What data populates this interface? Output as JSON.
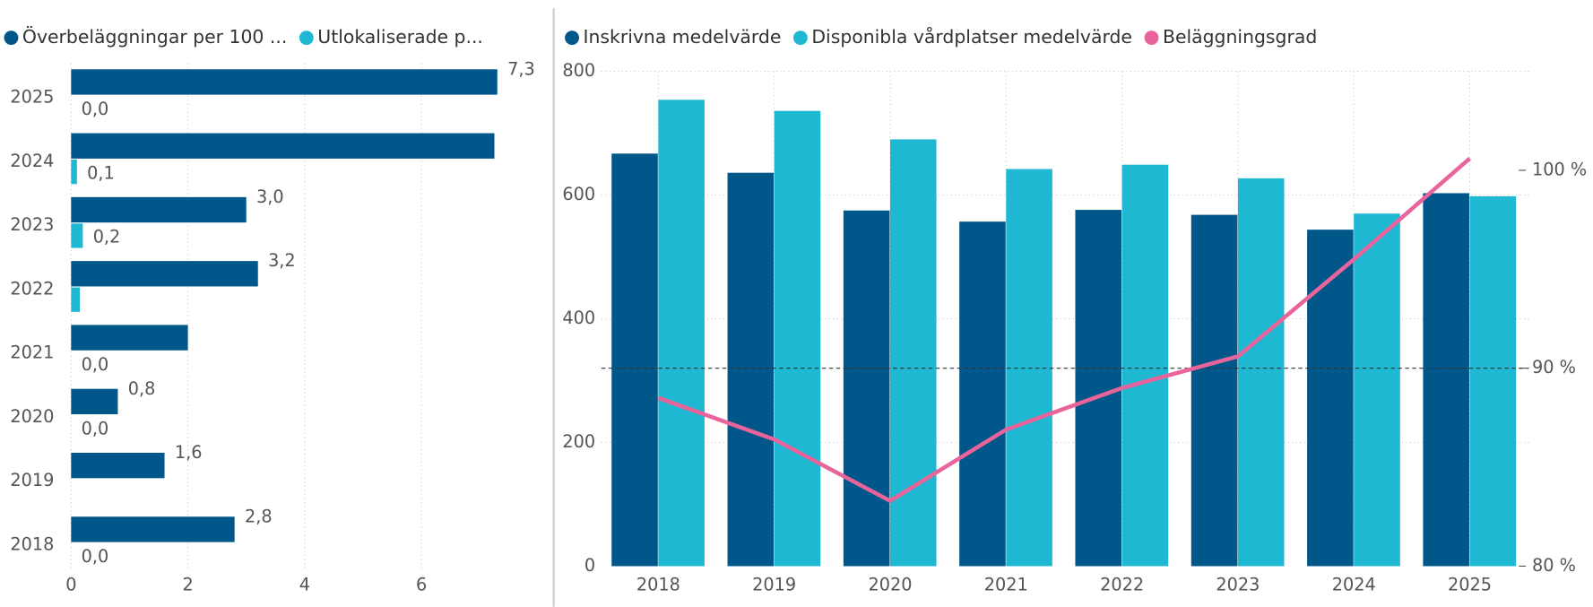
{
  "chart_data": [
    {
      "type": "hbar",
      "categories": [
        "2025",
        "2024",
        "2023",
        "2022",
        "2021",
        "2020",
        "2019",
        "2018"
      ],
      "series": [
        {
          "name": "Överbeläggningar per 100 ...",
          "color": "#01578a",
          "values": [
            7.3,
            7.25,
            3.0,
            3.2,
            2.0,
            0.8,
            1.6,
            2.8
          ],
          "value_labels": [
            "7,3",
            null,
            "3,0",
            "3,2",
            null,
            "0,8",
            "1,6",
            "2,8"
          ]
        },
        {
          "name": "Utlokaliserade p...",
          "color": "#1fb8d3",
          "values": [
            0.0,
            0.1,
            0.2,
            0.15,
            0.0,
            0.0,
            null,
            0.0
          ],
          "value_labels": [
            "0,0",
            "0,1",
            "0,2",
            null,
            "0,0",
            "0,0",
            null,
            "0,0"
          ]
        }
      ],
      "xlim": [
        0,
        7.5
      ],
      "xticks": [
        0,
        2,
        4,
        6
      ],
      "grid": true
    },
    {
      "type": "bar_line",
      "categories": [
        "2018",
        "2019",
        "2020",
        "2021",
        "2022",
        "2023",
        "2024",
        "2025"
      ],
      "series": [
        {
          "name": "Inskrivna medelvärde",
          "color": "#01578a",
          "type": "bar",
          "values": [
            667,
            636,
            575,
            557,
            576,
            568,
            544,
            603
          ]
        },
        {
          "name": "Disponibla vårdplatser medelvärde",
          "color": "#1fb8d3",
          "type": "bar",
          "values": [
            754,
            736,
            690,
            642,
            649,
            627,
            570,
            598
          ]
        },
        {
          "name": "Beläggningsgrad",
          "color": "#e8649b",
          "type": "line",
          "axis": "y2",
          "values": [
            88.5,
            86.4,
            83.3,
            86.9,
            89.0,
            90.6,
            95.5,
            100.6
          ]
        }
      ],
      "ylim": [
        0,
        800
      ],
      "yticks": [
        0,
        200,
        400,
        600,
        800
      ],
      "y2lim": [
        80,
        105
      ],
      "y2ticks": [
        {
          "value": 80,
          "label": "80 %"
        },
        {
          "value": 90,
          "label": "90 %"
        },
        {
          "value": 100,
          "label": "100 %"
        }
      ],
      "reference_line": {
        "axis": "y2",
        "value": 90
      },
      "grid": true
    }
  ]
}
